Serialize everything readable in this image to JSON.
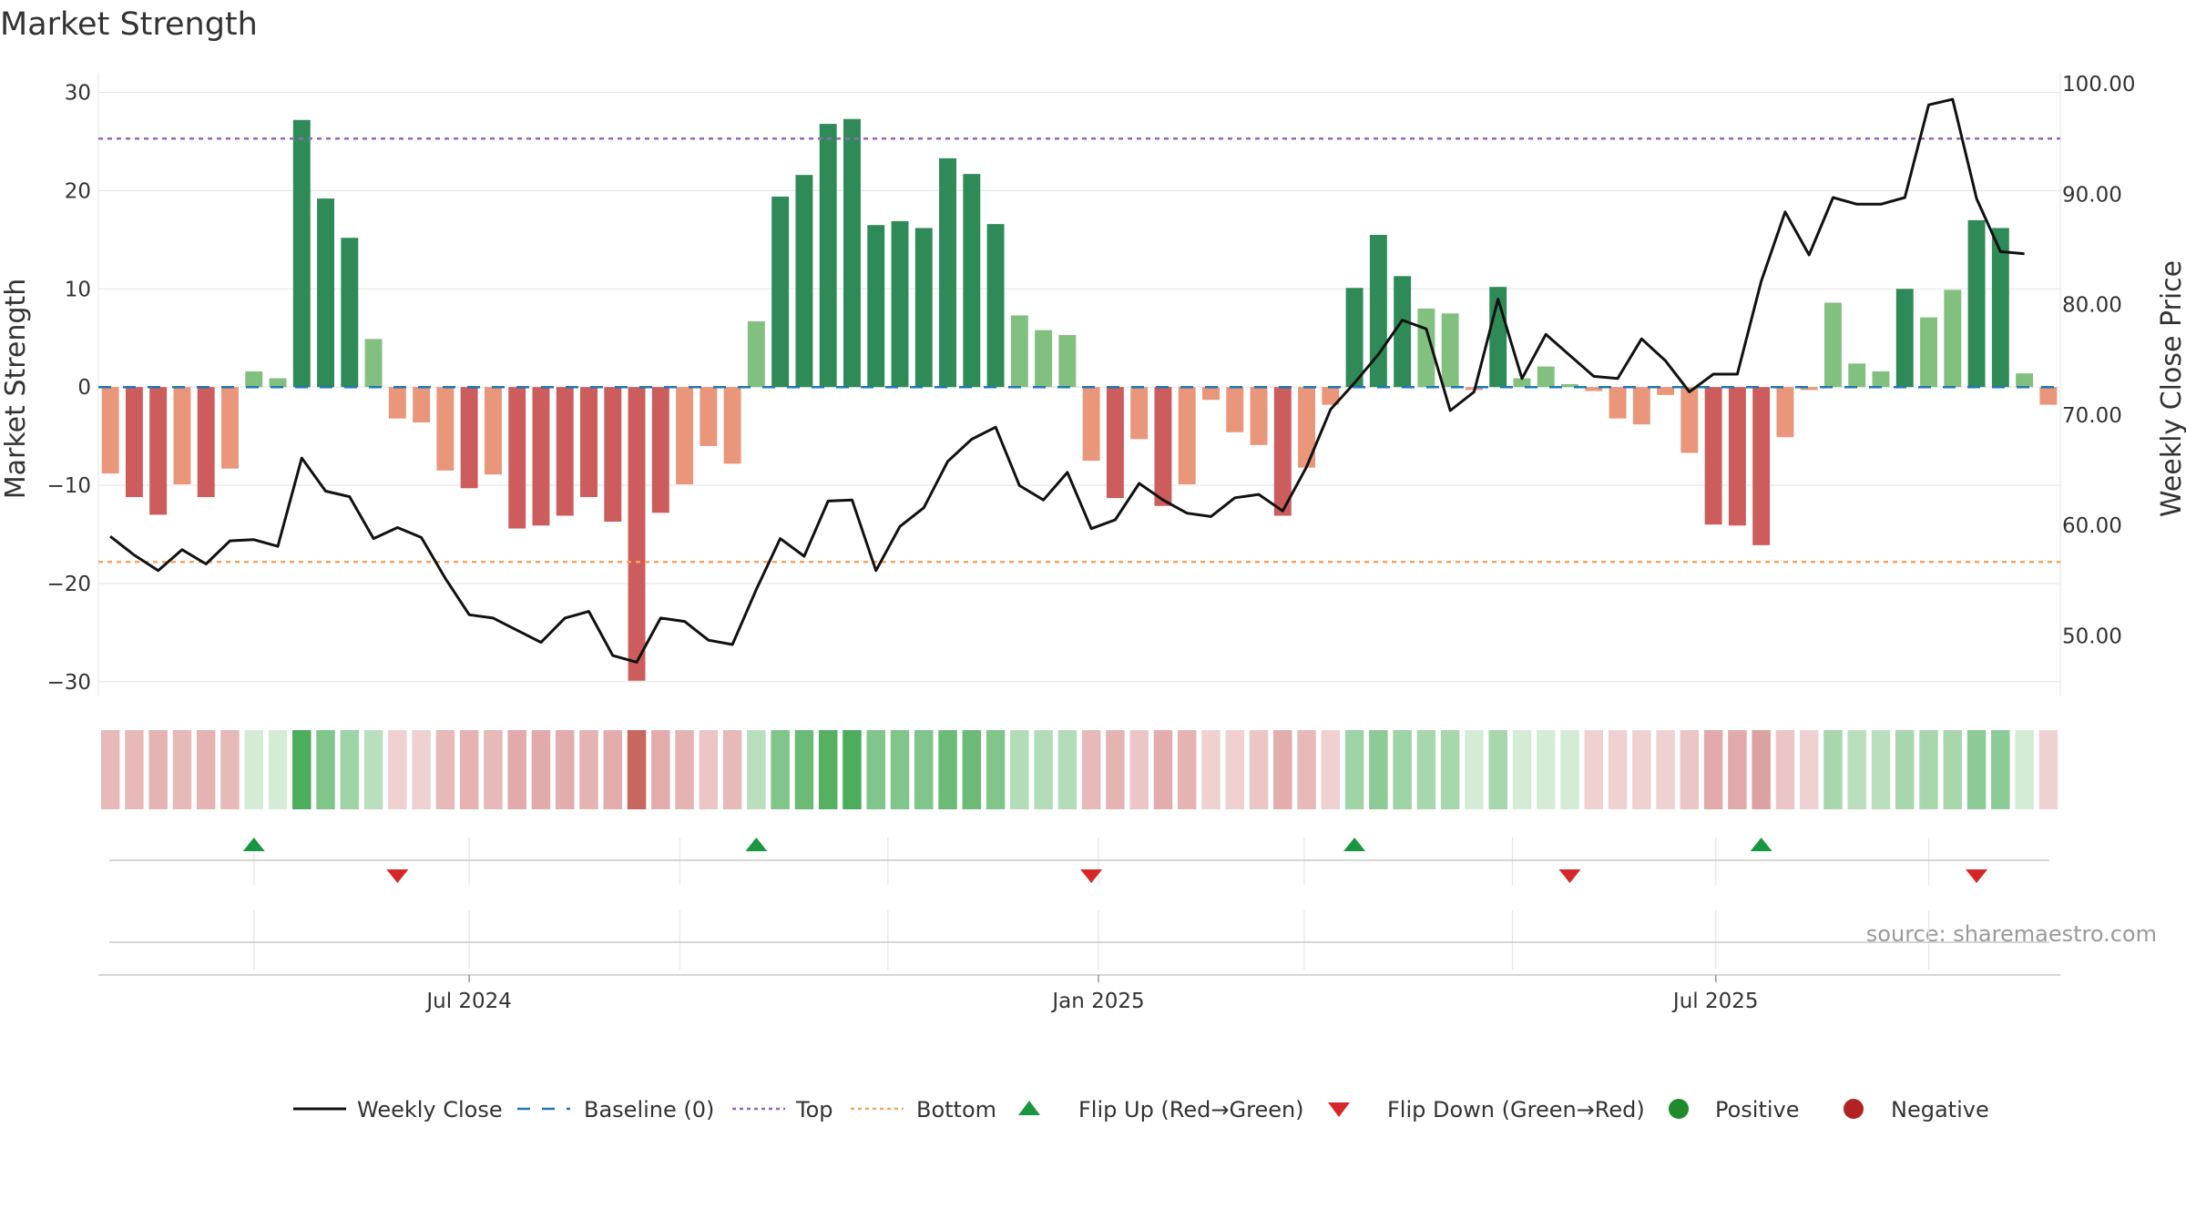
{
  "chart_data": {
    "type": "bar",
    "title": "Market Strength",
    "ylabel": "Market Strength",
    "y2label": "Weekly Close Price",
    "ylim": [
      -31.5,
      32
    ],
    "y2lim": [
      44.5,
      101
    ],
    "yticks": [
      30,
      20,
      10,
      0,
      -10,
      -20,
      -30
    ],
    "ytick_labels": [
      "30",
      "20",
      "10",
      "0",
      "−10",
      "−20",
      "−30"
    ],
    "y2ticks": [
      100,
      90,
      80,
      70,
      60,
      50
    ],
    "y2tick_labels": [
      "100.00",
      "90.00",
      "80.00",
      "70.00",
      "60.00",
      "50.00"
    ],
    "top_line": 25.3,
    "bottom_line": -17.8,
    "x_tick_labels": [
      {
        "label": "Jul 2024",
        "week": 15.5
      },
      {
        "label": "Jan 2025",
        "week": 41.8
      },
      {
        "label": "Jul 2025",
        "week": 67.6
      }
    ],
    "x_minor_weeks": [
      6.5,
      15.5,
      24.3,
      33.0,
      41.8,
      50.4,
      59.1,
      67.6,
      76.5
    ],
    "strength": [
      -8.8,
      -11.2,
      -13.0,
      -9.9,
      -11.2,
      -8.3,
      1.6,
      0.9,
      27.2,
      19.2,
      15.2,
      4.9,
      -3.2,
      -3.6,
      -8.5,
      -10.3,
      -8.9,
      -14.4,
      -14.1,
      -13.1,
      -11.2,
      -13.7,
      -29.9,
      -12.8,
      -9.9,
      -6.0,
      -7.8,
      6.7,
      19.4,
      21.6,
      26.8,
      27.3,
      16.5,
      16.9,
      16.2,
      23.3,
      21.7,
      16.6,
      7.3,
      5.8,
      5.3,
      -7.5,
      -11.3,
      -5.3,
      -12.1,
      -9.9,
      -1.3,
      -4.6,
      -5.9,
      -13.1,
      -8.2,
      -1.8,
      10.1,
      15.5,
      11.3,
      8.0,
      7.5,
      -0.3,
      10.2,
      0.9,
      2.1,
      0.3,
      -0.4,
      -3.2,
      -3.8,
      -0.8,
      -6.7,
      -14.0,
      -14.1,
      -16.1,
      -5.1,
      -0.3,
      8.6,
      2.4,
      1.6,
      10.0,
      7.1,
      9.9,
      17.0,
      16.2,
      1.4,
      -1.8
    ],
    "close": [
      59,
      57.3,
      55.9,
      57.8,
      56.5,
      58.6,
      58.7,
      58.1,
      66.1,
      63.1,
      62.6,
      58.8,
      59.8,
      58.9,
      55.2,
      51.9,
      51.6,
      50.5,
      49.4,
      51.6,
      52.2,
      48.2,
      47.6,
      51.6,
      51.3,
      49.6,
      49.2,
      54.2,
      58.8,
      57.2,
      62.2,
      62.3,
      55.9,
      59.9,
      61.6,
      65.8,
      67.8,
      68.9,
      63.6,
      62.3,
      64.8,
      59.7,
      60.5,
      63.8,
      62.3,
      61.1,
      60.8,
      62.5,
      62.8,
      61.3,
      65.3,
      70.5,
      72.9,
      75.5,
      78.6,
      77.8,
      70.4,
      72.1,
      80.5,
      73.3,
      77.3,
      75.4,
      73.5,
      73.3,
      76.9,
      74.9,
      72.1,
      73.7,
      73.7,
      82.1,
      88.4,
      84.5,
      89.7,
      89.1,
      89.1,
      89.7,
      98.1,
      98.6,
      89.6,
      84.8,
      84.6
    ],
    "heat_colors": [
      "#e8b9b9",
      "#e8b9b9",
      "#e6b3b3",
      "#e8b9b9",
      "#e6b3b3",
      "#e8b9b9",
      "#d4ecd6",
      "#d4ecd6",
      "#4cad5c",
      "#80c58a",
      "#9ed3a5",
      "#b9dfbe",
      "#f0d1d1",
      "#f0d1d1",
      "#e8b9b9",
      "#e6b3b3",
      "#e8b9b9",
      "#e2aaaa",
      "#e2aaaa",
      "#e3adad",
      "#e6b3b3",
      "#e3adad",
      "#c8675e",
      "#e3adad",
      "#e6b3b3",
      "#ecc6c6",
      "#e8b9b9",
      "#b9dfbe",
      "#80c58a",
      "#6bbb77",
      "#55b064",
      "#4cad5c",
      "#80c58a",
      "#80c58a",
      "#80c58a",
      "#6bbb77",
      "#6bbb77",
      "#80c58a",
      "#b3dcb8",
      "#b3dcb8",
      "#b3dcb8",
      "#e8b9b9",
      "#e6b3b3",
      "#ecc6c6",
      "#e3adad",
      "#e6b3b3",
      "#f0d1d1",
      "#f0d1d1",
      "#ecc6c6",
      "#e3adad",
      "#e8b9b9",
      "#f0d1d1",
      "#9ed3a5",
      "#8ccb95",
      "#9ed3a5",
      "#a8d7ae",
      "#a8d7ae",
      "#d4ecd6",
      "#a8d7ae",
      "#d4ecd6",
      "#d4ecd6",
      "#d4ecd6",
      "#f0d1d1",
      "#f0d1d1",
      "#f0d1d1",
      "#f0d1d1",
      "#ecc6c6",
      "#e2aaaa",
      "#e2aaaa",
      "#dca1a1",
      "#ecc6c6",
      "#f0d1d1",
      "#a8d7ae",
      "#b9dfbe",
      "#b9dfbe",
      "#a8d7ae",
      "#a8d7ae",
      "#a8d7ae",
      "#8ccb95",
      "#8ccb95",
      "#d4ecd6",
      "#f0d1d1"
    ],
    "flip_up_weeks": [
      6,
      27,
      52,
      69
    ],
    "flip_down_weeks": [
      12,
      41,
      61,
      78
    ],
    "colors": {
      "strong_pos": "#2e8b57",
      "weak_pos": "#82c080",
      "strong_neg": "#cd5c5c",
      "weak_neg": "#e9967a",
      "close": "#111111",
      "baseline": "#1f77b4",
      "top": "#9467bd",
      "bottom": "#f4a460",
      "flip_up": "#1a9641",
      "flip_down": "#d62728",
      "positive": "#1f8b2c",
      "negative": "#b22222",
      "grid": "#e6e6e6"
    },
    "legend": [
      {
        "label": "Weekly Close",
        "marker": "line"
      },
      {
        "label": "Baseline (0)",
        "marker": "dash"
      },
      {
        "label": "Top",
        "marker": "dot-purple"
      },
      {
        "label": "Bottom",
        "marker": "dot-orange"
      },
      {
        "label": "Flip Up (Red→Green)",
        "marker": "triangle-up"
      },
      {
        "label": "Flip Down (Green→Red)",
        "marker": "triangle-down"
      },
      {
        "label": "Positive",
        "marker": "circle-green"
      },
      {
        "label": "Negative",
        "marker": "circle-red"
      }
    ],
    "source": "source: sharemaestro.com"
  }
}
